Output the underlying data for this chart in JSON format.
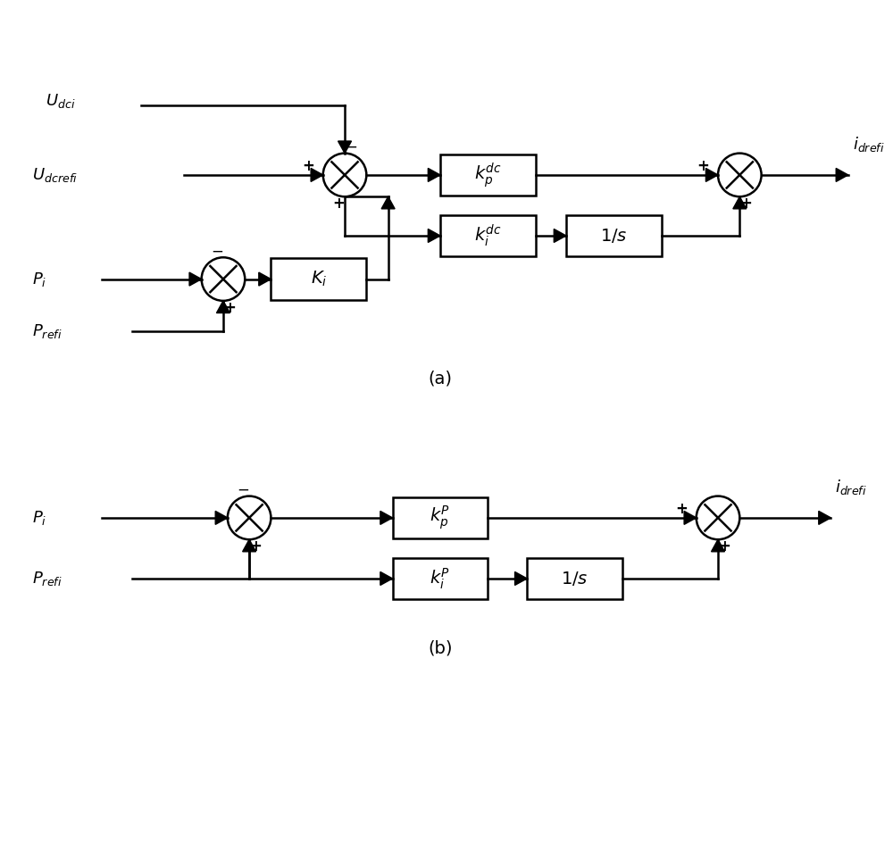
{
  "bg_color": "#ffffff",
  "fig_width": 10.0,
  "fig_height": 9.43,
  "label_a": "(a)",
  "label_b": "(b)"
}
